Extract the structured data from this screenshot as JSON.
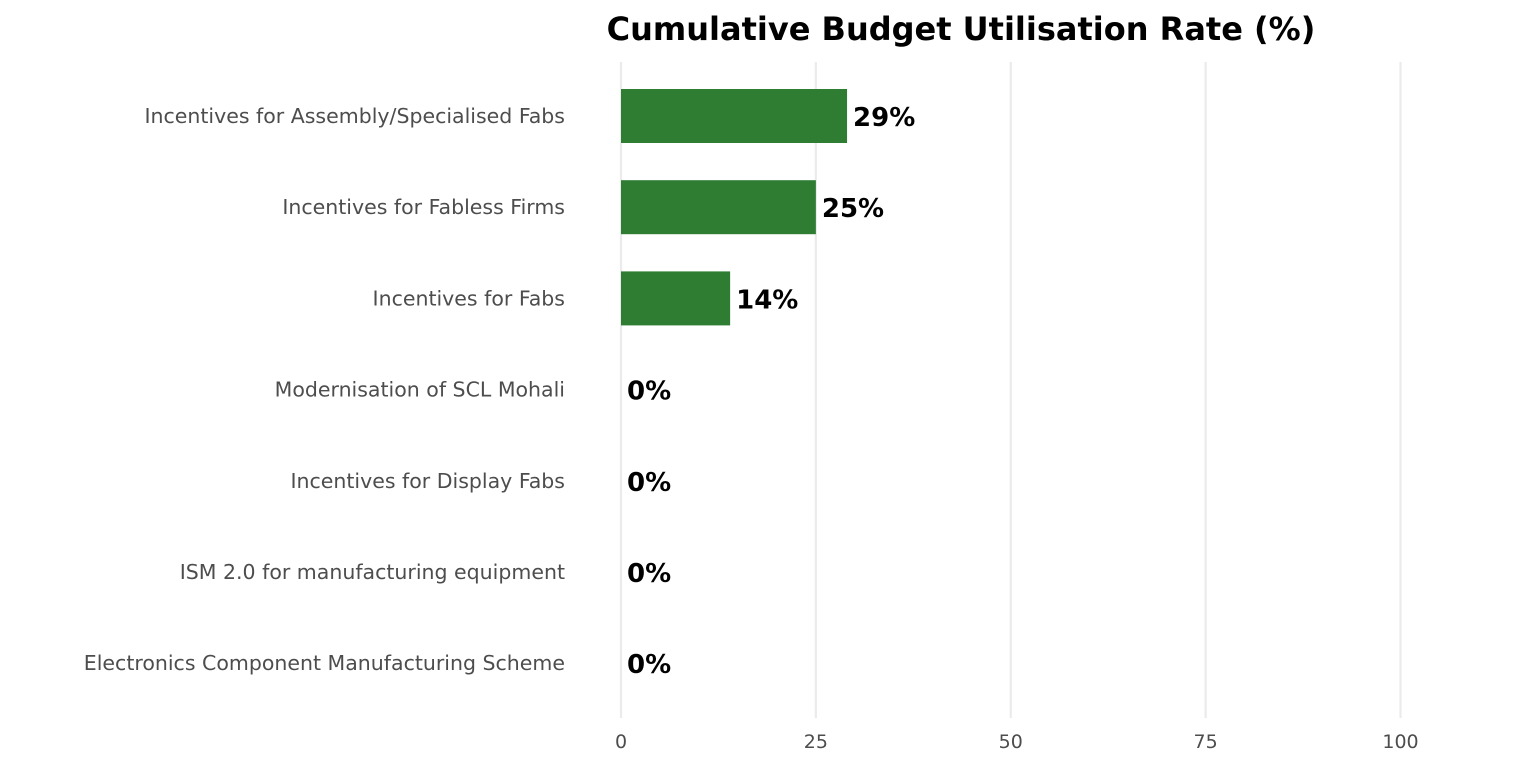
{
  "chart_data": {
    "type": "bar",
    "orientation": "horizontal",
    "title": "Cumulative Budget Utilisation Rate (%)",
    "xlabel": "",
    "ylabel": "",
    "categories": [
      "Incentives for Assembly/Specialised Fabs",
      "Incentives for Fabless Firms",
      "Incentives for Fabs",
      "Modernisation of SCL Mohali",
      "Incentives for Display Fabs",
      "ISM 2.0 for manufacturing equipment",
      "Electronics Component Manufacturing Scheme"
    ],
    "values": [
      29,
      25,
      14,
      0,
      0,
      0,
      0
    ],
    "value_labels": [
      "29%",
      "25%",
      "14%",
      "0%",
      "0%",
      "0%",
      "0%"
    ],
    "xlim": [
      0,
      110
    ],
    "xticks": [
      0,
      25,
      50,
      75,
      100
    ],
    "xtick_labels": [
      "0",
      "25",
      "50",
      "75",
      "100"
    ],
    "grid": "vertical major",
    "legend": "none",
    "bar_color": "#2e7d32"
  }
}
